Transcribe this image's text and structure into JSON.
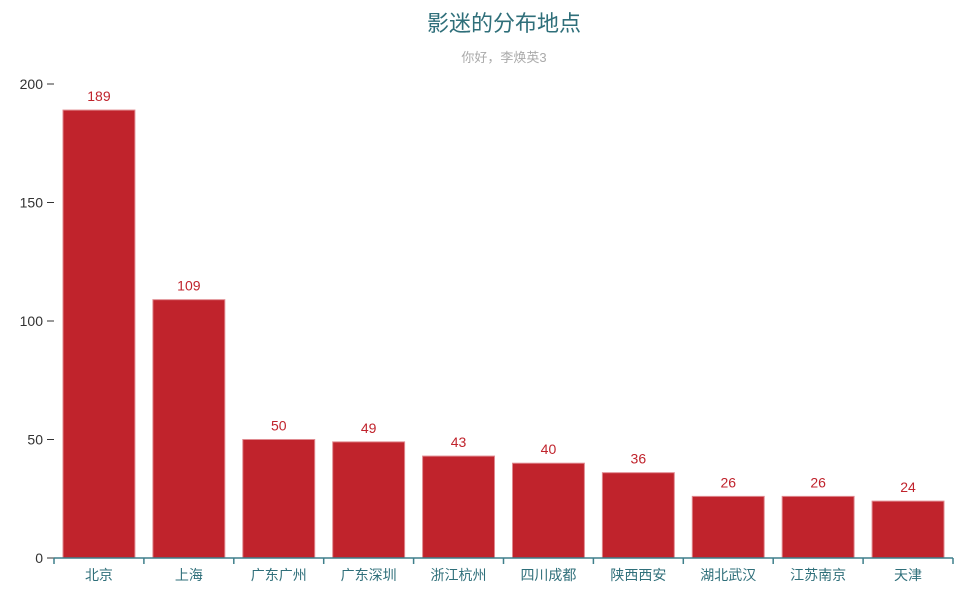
{
  "chart_data": {
    "type": "bar",
    "title": "影迷的分布地点",
    "subtitle": "你好，李焕英3",
    "categories": [
      "北京",
      "上海",
      "广东广州",
      "广东深圳",
      "浙江杭州",
      "四川成都",
      "陕西西安",
      "湖北武汉",
      "江苏南京",
      "天津"
    ],
    "values": [
      189,
      109,
      50,
      49,
      43,
      40,
      36,
      26,
      26,
      24
    ],
    "xlabel": "",
    "ylabel": "",
    "ylim": [
      0,
      200
    ],
    "yticks": [
      0,
      50,
      100,
      150,
      200
    ],
    "grid": false,
    "legend": null,
    "data_labels": true,
    "colors": {
      "bar": "#c0232c",
      "title": "#2f6f7a",
      "subtitle": "#aaaaaa",
      "axis": "#3e7f8b"
    }
  }
}
